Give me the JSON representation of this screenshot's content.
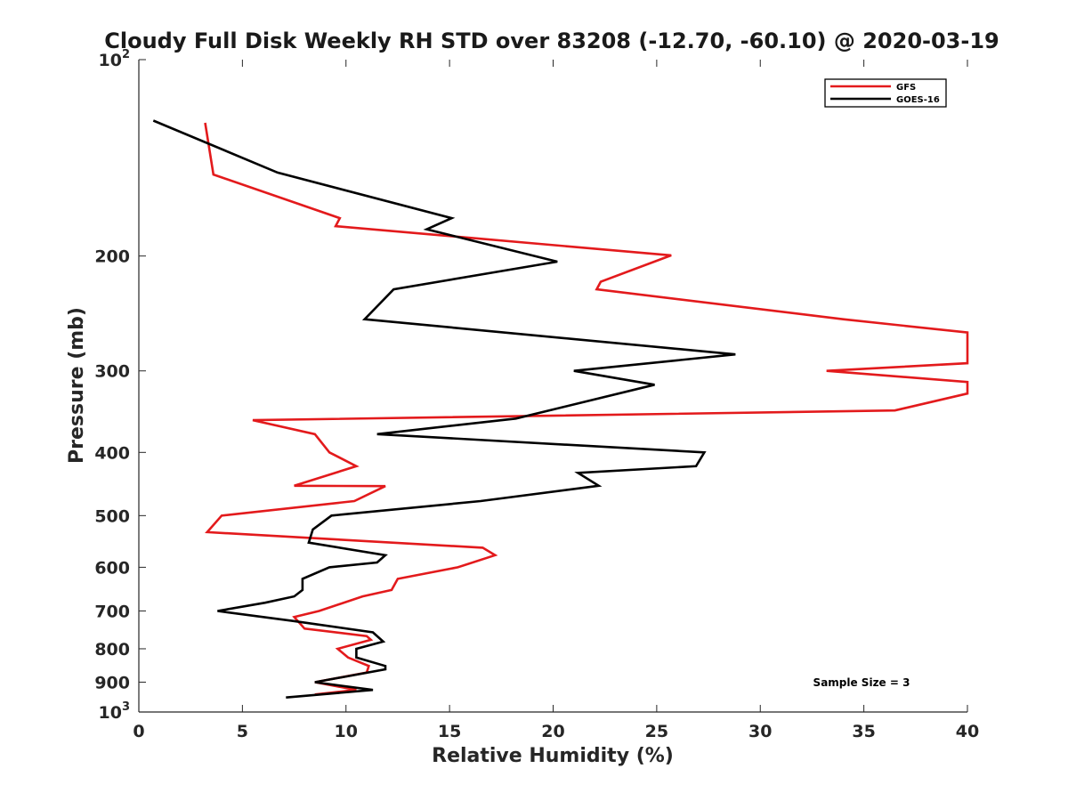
{
  "chart_data": {
    "type": "line",
    "title": "Cloudy Full Disk Weekly RH STD over 83208 (-12.70, -60.10) @ 2020-03-19",
    "xlabel": "Relative Humidity (%)",
    "ylabel": "Pressure (mb)",
    "xlim": [
      0,
      40
    ],
    "ylim": [
      100,
      1000
    ],
    "yscale": "log",
    "y_reversed": true,
    "xticks": [
      {
        "value": 0,
        "label": "0"
      },
      {
        "value": 5,
        "label": "5"
      },
      {
        "value": 10,
        "label": "10"
      },
      {
        "value": 15,
        "label": "15"
      },
      {
        "value": 20,
        "label": "20"
      },
      {
        "value": 25,
        "label": "25"
      },
      {
        "value": 30,
        "label": "30"
      },
      {
        "value": 35,
        "label": "35"
      },
      {
        "value": 40,
        "label": "40"
      }
    ],
    "yticks": [
      {
        "value": 100,
        "base": "10",
        "exp": "2"
      },
      {
        "value": 200,
        "base": "200",
        "exp": ""
      },
      {
        "value": 300,
        "base": "300",
        "exp": ""
      },
      {
        "value": 400,
        "base": "400",
        "exp": ""
      },
      {
        "value": 500,
        "base": "500",
        "exp": ""
      },
      {
        "value": 600,
        "base": "600",
        "exp": ""
      },
      {
        "value": 700,
        "base": "700",
        "exp": ""
      },
      {
        "value": 800,
        "base": "800",
        "exp": ""
      },
      {
        "value": 900,
        "base": "900",
        "exp": ""
      },
      {
        "value": 1000,
        "base": "10",
        "exp": "3"
      }
    ],
    "legend": {
      "placement": "top-right",
      "entries": [
        "GFS",
        "GOES-16"
      ]
    },
    "annotation": "Sample Size = 3",
    "series": [
      {
        "name": "GFS",
        "color": "#e31a1c",
        "points": [
          [
            3.2,
            125
          ],
          [
            3.6,
            150
          ],
          [
            9.7,
            175
          ],
          [
            9.5,
            180
          ],
          [
            25.7,
            199.5
          ],
          [
            22.3,
            219
          ],
          [
            22.1,
            225
          ],
          [
            34,
            250
          ],
          [
            40,
            262
          ],
          [
            40,
            292
          ],
          [
            33.2,
            300
          ],
          [
            40,
            312
          ],
          [
            40,
            325
          ],
          [
            36.5,
            345
          ],
          [
            5.5,
            357
          ],
          [
            8.5,
            375
          ],
          [
            9.2,
            400
          ],
          [
            10.5,
            420
          ],
          [
            7.5,
            450
          ],
          [
            11.9,
            450.5
          ],
          [
            10.4,
            475
          ],
          [
            4,
            500
          ],
          [
            3.3,
            530
          ],
          [
            16.6,
            560
          ],
          [
            17.2,
            575
          ],
          [
            15.4,
            600
          ],
          [
            12.5,
            625
          ],
          [
            12.2,
            650
          ],
          [
            10.8,
            665
          ],
          [
            8.7,
            700
          ],
          [
            7.5,
            715
          ],
          [
            8,
            745
          ],
          [
            11,
            765
          ],
          [
            11.2,
            775
          ],
          [
            9.6,
            800
          ],
          [
            10.1,
            825
          ],
          [
            11.1,
            850
          ],
          [
            11,
            870
          ],
          [
            8.5,
            900
          ],
          [
            10.5,
            925
          ],
          [
            8.5,
            940
          ]
        ]
      },
      {
        "name": "GOES-16",
        "color": "#000000",
        "points": [
          [
            0.7,
            124
          ],
          [
            6.7,
            149
          ],
          [
            15.1,
            175
          ],
          [
            13.9,
            182
          ],
          [
            20.2,
            204
          ],
          [
            12.3,
            225
          ],
          [
            10.9,
            250
          ],
          [
            28.8,
            283
          ],
          [
            21.0,
            300
          ],
          [
            24.9,
            315
          ],
          [
            18.2,
            355
          ],
          [
            11.5,
            375
          ],
          [
            27.3,
            400
          ],
          [
            26.9,
            420
          ],
          [
            21.2,
            430
          ],
          [
            22.2,
            450
          ],
          [
            16.5,
            475
          ],
          [
            9.3,
            500
          ],
          [
            8.4,
            525
          ],
          [
            8.2,
            550
          ],
          [
            11.9,
            575
          ],
          [
            11.5,
            590
          ],
          [
            9.2,
            600
          ],
          [
            7.9,
            625
          ],
          [
            7.9,
            650
          ],
          [
            7.5,
            665
          ],
          [
            6.1,
            680
          ],
          [
            3.8,
            700
          ],
          [
            7.4,
            725
          ],
          [
            11.3,
            755
          ],
          [
            11.8,
            780
          ],
          [
            10.5,
            800
          ],
          [
            10.5,
            825
          ],
          [
            11.9,
            850
          ],
          [
            11.9,
            860
          ],
          [
            8.5,
            900
          ],
          [
            11.3,
            925
          ],
          [
            7.1,
            950
          ]
        ]
      }
    ]
  }
}
